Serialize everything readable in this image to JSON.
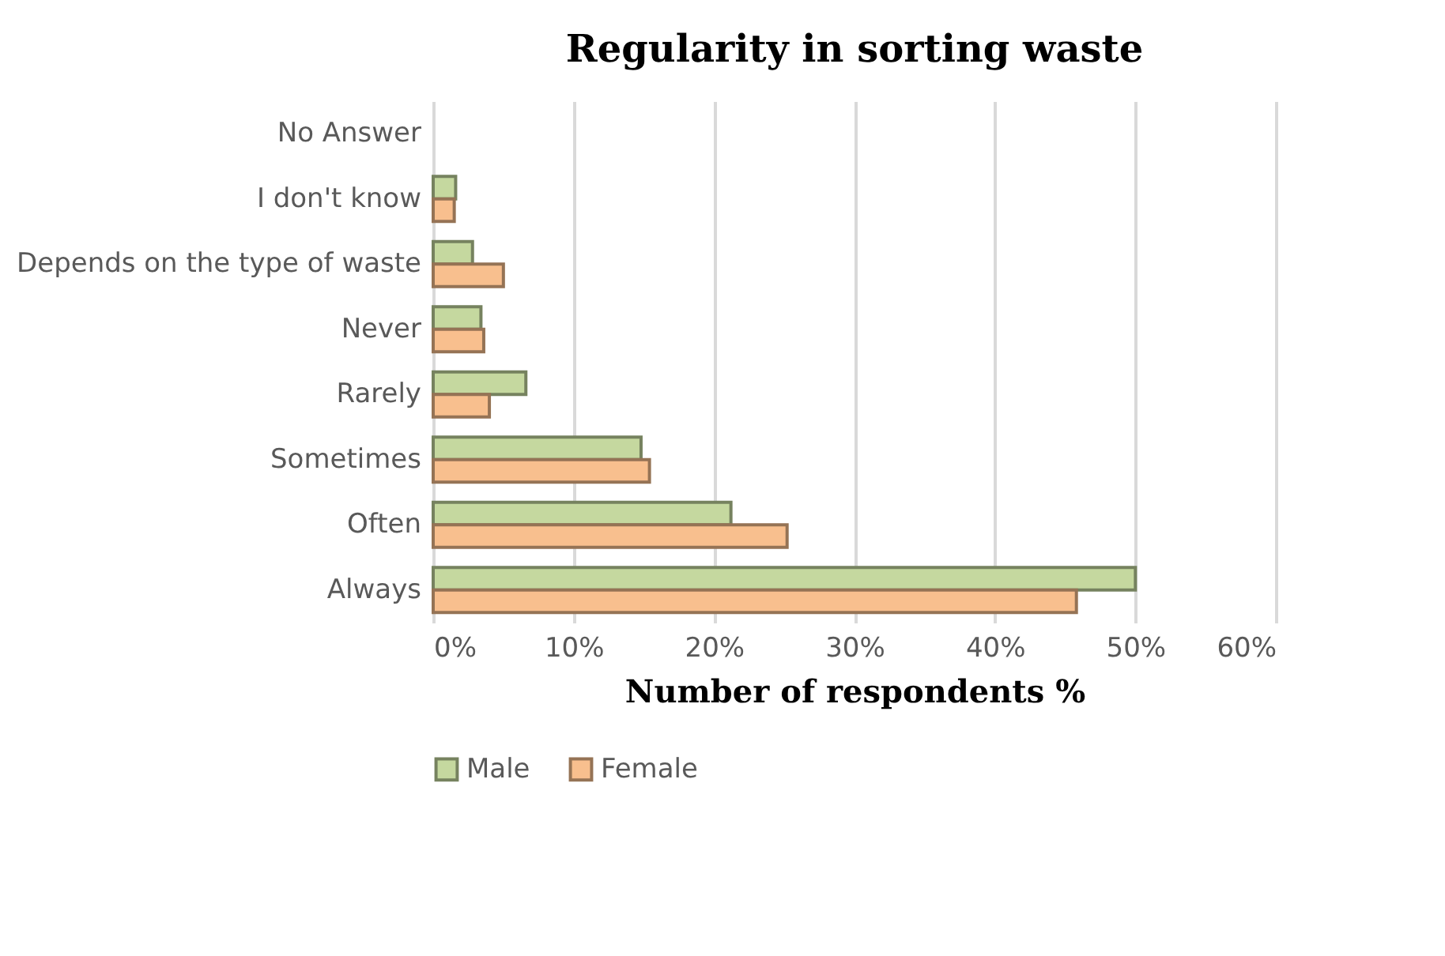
{
  "chart_data": {
    "type": "bar",
    "orientation": "horizontal",
    "title": "Regularity in sorting waste",
    "xlabel": "Number of respondents %",
    "categories": [
      "No Answer",
      "I don't know",
      "Depends on the type of waste",
      "Never",
      "Rarely",
      "Sometimes",
      "Often",
      "Always"
    ],
    "series": [
      {
        "name": "Male",
        "color": "#c5d89f",
        "values": [
          0,
          1.6,
          2.8,
          3.4,
          6.6,
          14.8,
          21.2,
          50
        ]
      },
      {
        "name": "Female",
        "color": "#f8bf8e",
        "values": [
          0,
          1.5,
          5.0,
          3.6,
          4.0,
          15.4,
          25.2,
          45.8
        ]
      }
    ],
    "xlim": [
      0,
      60
    ],
    "xticks": [
      {
        "value": 0,
        "label": "0%"
      },
      {
        "value": 10,
        "label": "10%"
      },
      {
        "value": 20,
        "label": "20%"
      },
      {
        "value": 30,
        "label": "30%"
      },
      {
        "value": 40,
        "label": "40%"
      },
      {
        "value": 50,
        "label": "50%"
      },
      {
        "value": 60,
        "label": "60%"
      }
    ],
    "grid": "x",
    "legend": "bottom"
  }
}
